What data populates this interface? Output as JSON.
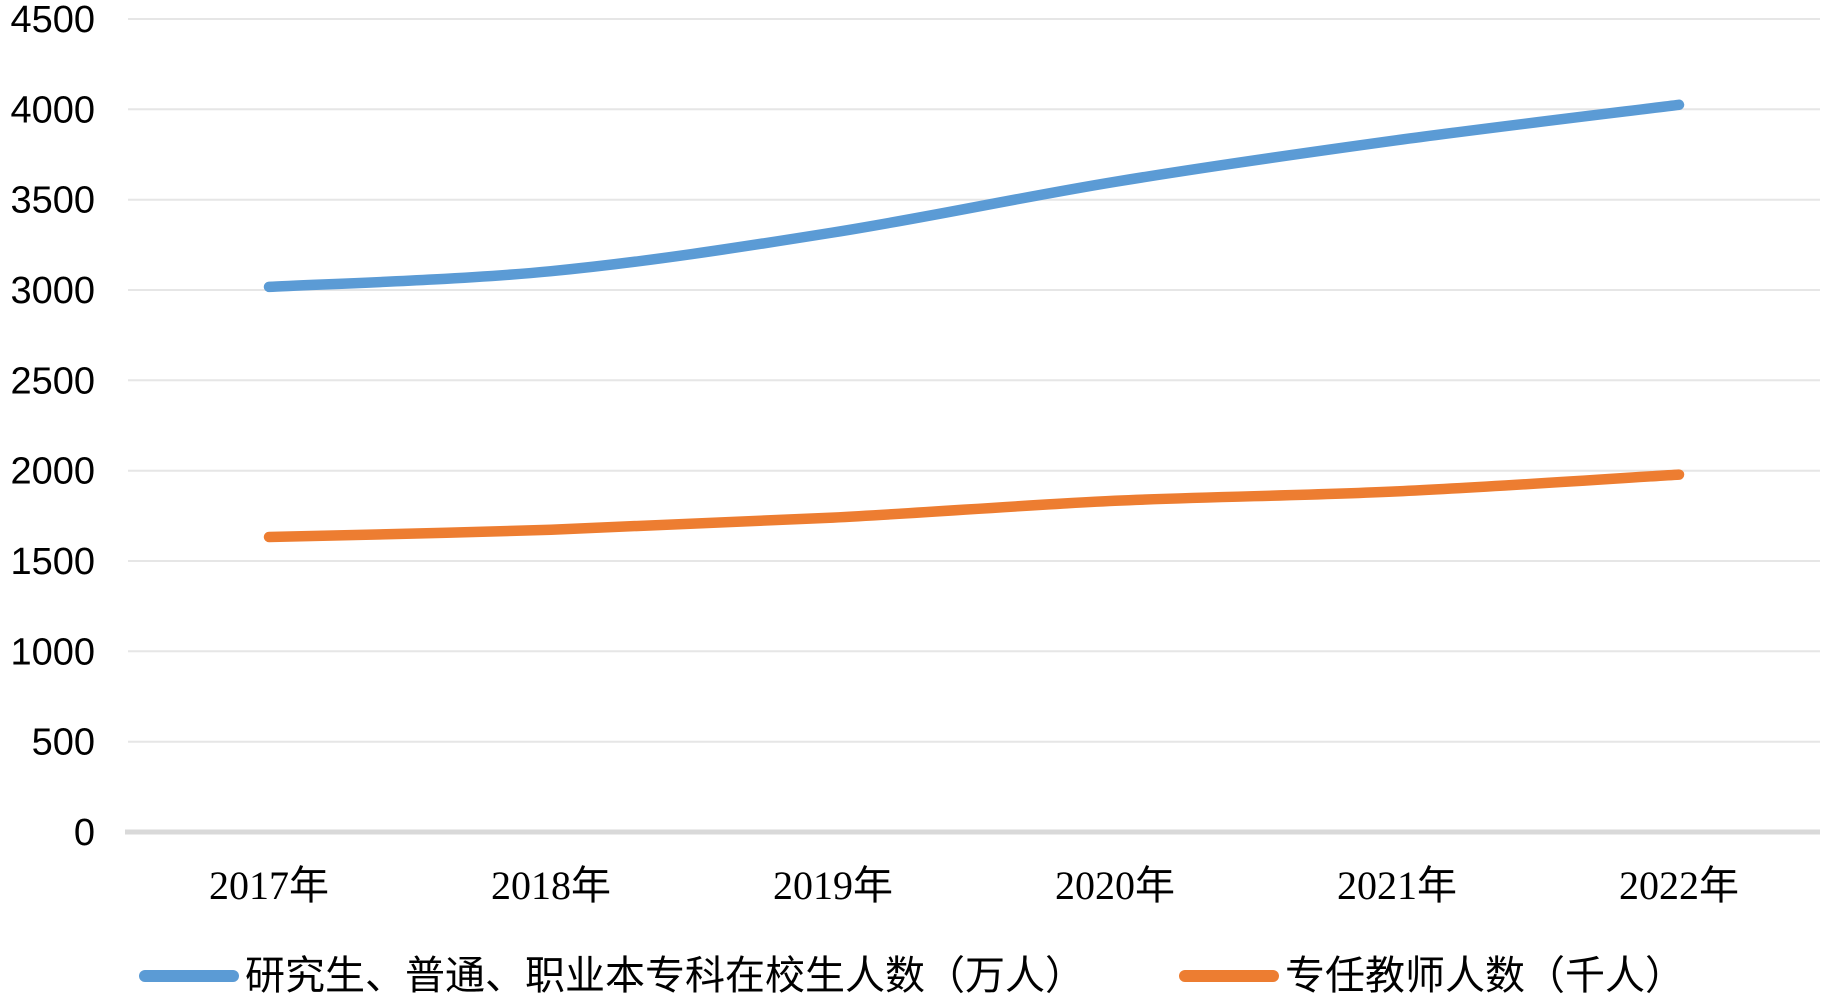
{
  "chart_data": {
    "type": "line",
    "title": "",
    "xlabel": "",
    "ylabel": "",
    "categories": [
      "2017年",
      "2018年",
      "2019年",
      "2020年",
      "2021年",
      "2022年"
    ],
    "series": [
      {
        "name": "研究生、普通、职业本专科在校生人数（万人）",
        "values": [
          3017,
          3104,
          3318,
          3599,
          3829,
          4025
        ],
        "color": "#5B9BD5"
      },
      {
        "name": "专任教师人数（千人）",
        "values": [
          1633,
          1673,
          1740,
          1833,
          1885,
          1978
        ],
        "color": "#ED7D31"
      }
    ],
    "ylim": [
      0,
      4500
    ],
    "yticks": [
      0,
      500,
      1000,
      1500,
      2000,
      2500,
      3000,
      3500,
      4000,
      4500
    ],
    "grid": "horizontal",
    "gridline_color": "#E6E6E6",
    "axis_line_color": "#D9D9D9",
    "legend_position": "bottom",
    "smooth": true
  }
}
